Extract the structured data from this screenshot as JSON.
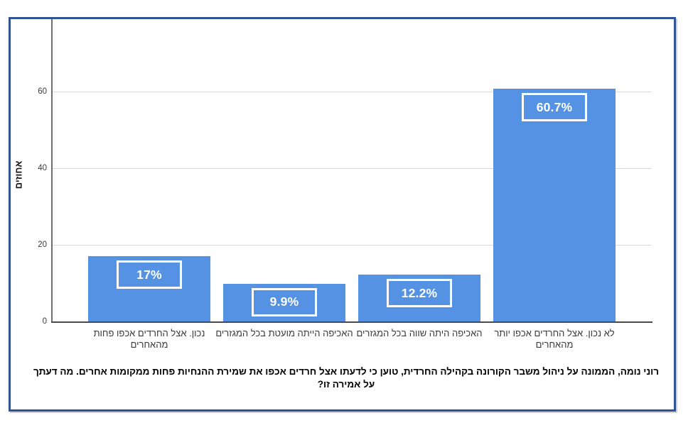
{
  "chart_data": {
    "type": "bar",
    "title": "רוני נומה, הממונה על ניהול משבר הקורונה בקהילה החרדית, טוען כי לדעתו אצל חרדים אכפו את שמירת ההנחיות פחות ממקומות אחרים. מה דעתך על אמירה זו?",
    "ylabel": "אחוזים",
    "xlabel": "",
    "categories": [
      "נכון. אצל החרדים אכפו פחות מהאחרים",
      "האכיפה הייתה מועטת בכל המגזרים",
      "האכיפה היתה שווה בכל המגזרים",
      "לא נכון. אצל החרדים אכפו יותר מהאחרים"
    ],
    "values": [
      17,
      9.9,
      12.2,
      60.7
    ],
    "value_labels": [
      "17%",
      "9.9%",
      "12.2%",
      "60.7%"
    ],
    "yticks": [
      0,
      20,
      40,
      60
    ],
    "ylim": [
      0,
      79
    ],
    "grid": true,
    "legend": false,
    "bar_color": "#5592E3",
    "value_label_style": "white text in white-outlined box inside bar",
    "frame_border_color": "#2F5597",
    "gridline_color": "#d9d9d9",
    "direction": "rtl"
  }
}
